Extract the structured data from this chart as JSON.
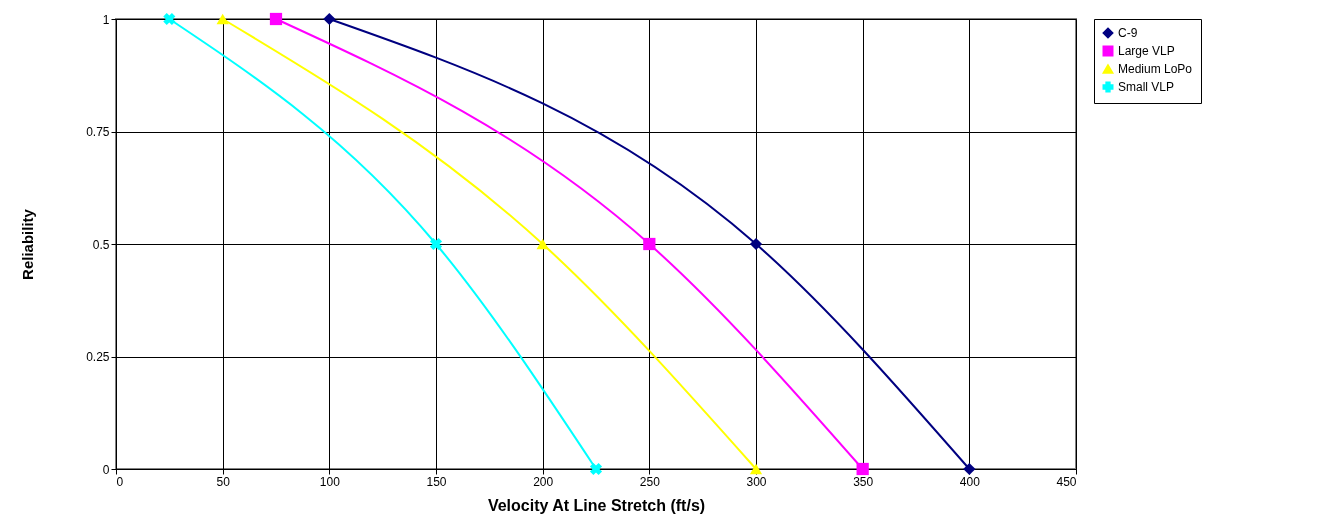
{
  "chart_data": {
    "type": "line",
    "xlabel": "Velocity At Line Stretch (ft/s)",
    "ylabel": "Reliability",
    "xlim": [
      0,
      450
    ],
    "xticks": [
      0,
      50,
      100,
      150,
      200,
      250,
      300,
      350,
      400,
      450
    ],
    "ylim": [
      0,
      1
    ],
    "yticks": [
      0,
      0.25,
      0.5,
      0.75,
      1
    ],
    "grid": true,
    "legend": "right",
    "series": [
      {
        "name": "C-9",
        "color": "#000080",
        "marker": "diamond",
        "x": [
          100,
          300,
          400
        ],
        "values": [
          1,
          0.5,
          0
        ]
      },
      {
        "name": "Large VLP",
        "color": "#ff00ff",
        "marker": "square",
        "x": [
          75,
          250,
          350
        ],
        "values": [
          1,
          0.5,
          0
        ]
      },
      {
        "name": "Medium LoPo",
        "color": "#ffff00",
        "marker": "triangle",
        "x": [
          50,
          200,
          300
        ],
        "values": [
          1,
          0.5,
          0
        ]
      },
      {
        "name": "Small VLP",
        "color": "#00ffff",
        "marker": "cross",
        "x": [
          25,
          150,
          225
        ],
        "values": [
          1,
          0.5,
          0
        ]
      }
    ]
  }
}
